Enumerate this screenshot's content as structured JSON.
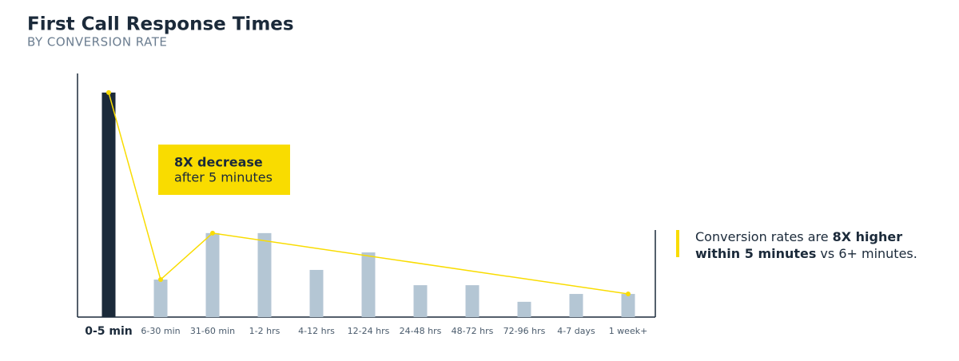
{
  "chart_data": {
    "type": "bar",
    "title": "First Call Response Times",
    "subtitle": "BY CONVERSION RATE",
    "categories": [
      "0-5 min",
      "6-30 min",
      "31-60 min",
      "1-2 hrs",
      "4-12 hrs",
      "12-24 hrs",
      "24-48 hrs",
      "48-72 hrs",
      "72-96 hrs",
      "4-7 days",
      "1 week+"
    ],
    "values": [
      100,
      16.7,
      37.4,
      37.4,
      21,
      28.8,
      14.2,
      14.2,
      6.8,
      10.3,
      10.3
    ],
    "highlight_color": "#1b2a3a",
    "color": "#b4c6d4",
    "ylim": [
      0,
      108.5
    ],
    "trend_points": [
      0,
      1,
      2,
      10
    ],
    "trend_color": "#f9dc00",
    "annotation": [
      "8X decrease",
      "after 5 minutes"
    ],
    "callout": [
      [
        {
          "text": "Conversion rates are",
          "bold": false
        },
        {
          "text": "8X higher",
          "bold": true
        }
      ],
      [
        {
          "text": "within 5 minutes",
          "bold": true
        },
        {
          "text": "vs 6+ minutes.",
          "bold": false
        }
      ]
    ]
  }
}
